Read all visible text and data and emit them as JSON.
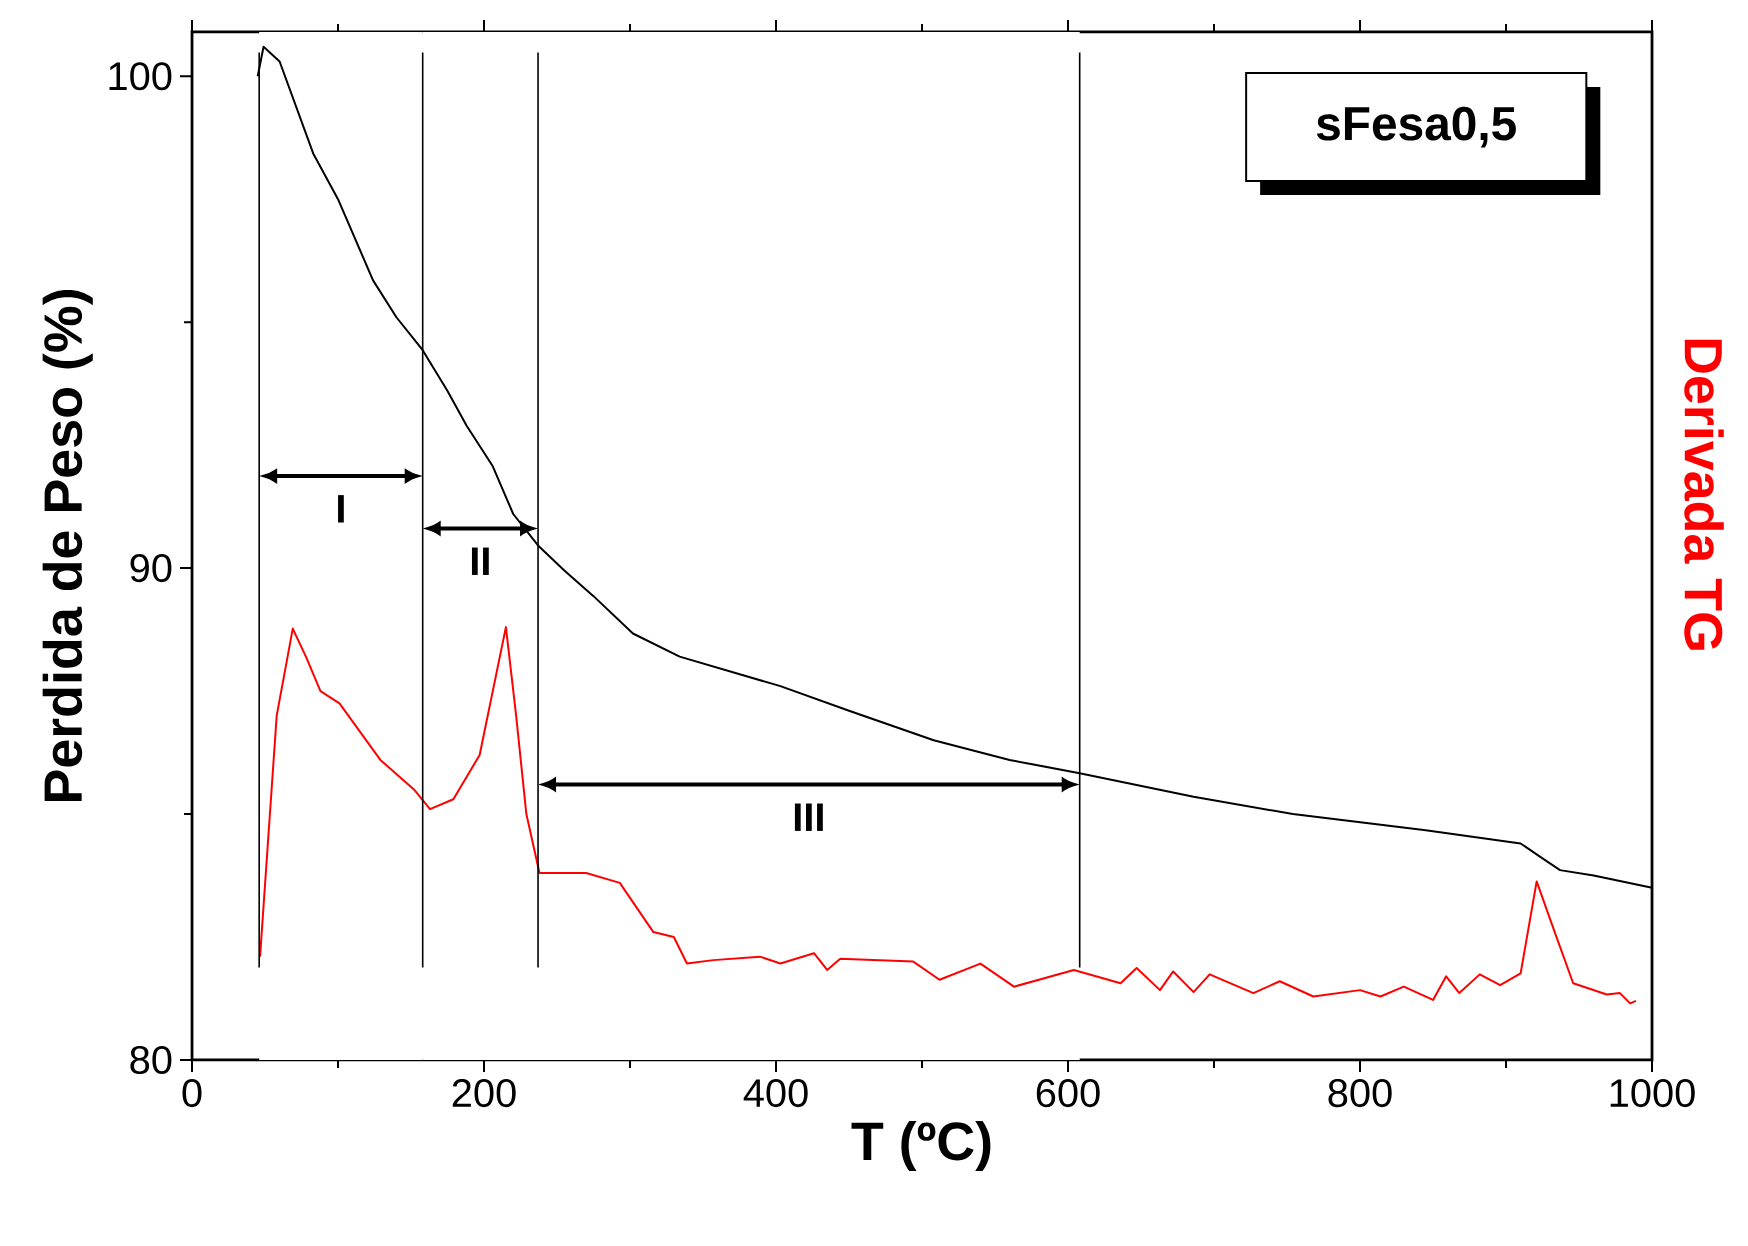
{
  "chart_data": {
    "type": "line",
    "xlabel": "T (ºC)",
    "ylabel": "Perdida de Peso (%)",
    "y2label": "Derivada TG",
    "xlim": [
      0,
      1000
    ],
    "ylim": [
      80,
      100.9
    ],
    "xticks": [
      0,
      200,
      400,
      600,
      800,
      1000
    ],
    "yticks": [
      80,
      90,
      100
    ],
    "series": [
      {
        "color": "#000000",
        "x": [
          45,
          49,
          60,
          83,
          100,
          124,
          140,
          158,
          175,
          188,
          206,
          220,
          237,
          255,
          275,
          302,
          334,
          403,
          450,
          508,
          560,
          608,
          686,
          754,
          845,
          910,
          925,
          937,
          960,
          1000
        ],
        "values": [
          100.0,
          100.6,
          100.3,
          98.43,
          97.5,
          95.85,
          95.1,
          94.43,
          93.6,
          92.9,
          92.07,
          91.1,
          90.46,
          89.95,
          89.43,
          88.67,
          88.2,
          87.6,
          87.1,
          86.5,
          86.1,
          85.83,
          85.35,
          85.0,
          84.67,
          84.4,
          84.1,
          83.86,
          83.75,
          83.5
        ]
      },
      {
        "color": "#ff0000",
        "x": [
          46.6,
          58,
          69,
          78,
          88,
          101,
          129,
          152,
          163,
          179,
          197,
          215,
          222,
          229,
          238,
          270,
          293,
          316,
          330,
          339,
          357,
          389,
          403,
          426,
          435,
          444,
          494,
          512,
          540,
          563,
          604,
          636,
          647,
          663,
          672,
          686,
          697,
          727,
          745,
          768,
          800,
          814,
          830,
          850,
          859,
          868,
          882,
          896,
          910,
          921,
          932,
          946,
          969,
          978,
          985,
          989
        ],
        "values": [
          82.1,
          87.0,
          88.77,
          88.2,
          87.5,
          87.25,
          86.1,
          85.5,
          85.1,
          85.3,
          86.2,
          88.8,
          87.0,
          85.0,
          83.8,
          83.8,
          83.6,
          82.6,
          82.5,
          81.96,
          82.03,
          82.1,
          81.96,
          82.17,
          81.83,
          82.06,
          82.0,
          81.63,
          81.96,
          81.49,
          81.83,
          81.56,
          81.87,
          81.42,
          81.8,
          81.38,
          81.74,
          81.36,
          81.6,
          81.29,
          81.42,
          81.29,
          81.49,
          81.22,
          81.7,
          81.36,
          81.74,
          81.52,
          81.76,
          83.63,
          82.71,
          81.56,
          81.33,
          81.36,
          81.15,
          81.2
        ]
      }
    ],
    "ref_lines": [
      {
        "axis": "x",
        "value": 46
      },
      {
        "axis": "x",
        "value": 158
      },
      {
        "axis": "x",
        "value": 237
      },
      {
        "axis": "x",
        "value": 608
      }
    ],
    "bands": [
      {
        "axis": "x",
        "from": 46,
        "to": 158,
        "label": "I",
        "color": "#ffffff"
      },
      {
        "axis": "x",
        "from": 158,
        "to": 237,
        "label": "II",
        "color": "#ffffff"
      },
      {
        "axis": "x",
        "from": 237,
        "to": 608,
        "label": "III",
        "color": "#ffffff"
      }
    ],
    "annotations": [
      "sFesa0,5"
    ]
  }
}
